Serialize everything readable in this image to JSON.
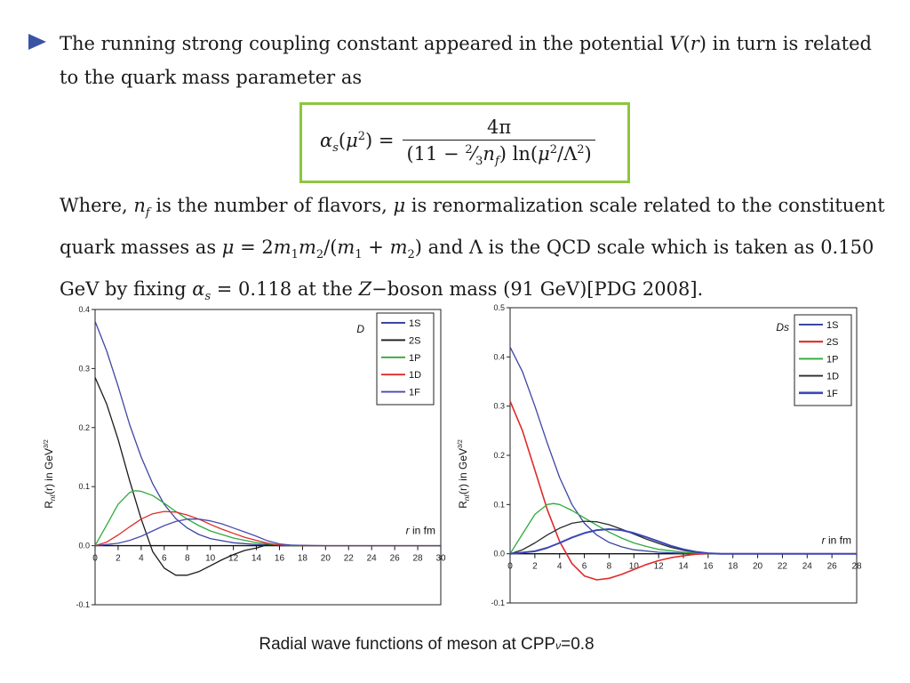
{
  "text": {
    "bullet_line1": "The running strong coupling constant appeared in the potential V(r) in turn is related",
    "bullet_line2": "to the quark mass parameter as",
    "formula_lhs": "α_s(μ²) =",
    "formula_num": "4π",
    "formula_den": "(11 − ⅔ n_f) ln(μ²/Λ²)",
    "where_line1": "Where, n_f is the number of flavors, μ is renormalization scale related to the constituent",
    "where_line2": "quark masses as μ = 2m₁m₂/(m₁ + m₂) and Λ is the QCD scale which is taken as 0.150",
    "where_line3": "GeV by fixing α_s = 0.118 at the Z−boson mass (91 GeV)[PDG 2008].",
    "caption_main": "Radial wave functions of meson at CPP",
    "caption_sub": "ν",
    "caption_value": "=0.8"
  },
  "colors": {
    "bullet": "#3a53a4",
    "formula_border": "#8dc63f"
  },
  "chart_data": [
    {
      "type": "line",
      "panel_label": "D",
      "xlabel": "r in fm",
      "ylabel": "R_nℓ(r) in GeV^3/2",
      "xlim": [
        0,
        30
      ],
      "ylim": [
        -0.1,
        0.4
      ],
      "xticks": [
        "0",
        "2",
        "4",
        "6",
        "8",
        "10",
        "12",
        "14",
        "16",
        "18",
        "20",
        "22",
        "24",
        "26",
        "28",
        "30"
      ],
      "yticks": [
        "-0.1",
        "0.0",
        "0.1",
        "0.2",
        "0.3",
        "0.4"
      ],
      "series": [
        {
          "name": "1S",
          "color": "#3b47a0",
          "width": 1.3,
          "points": [
            [
              0,
              0.38
            ],
            [
              1,
              0.33
            ],
            [
              2,
              0.27
            ],
            [
              3,
              0.205
            ],
            [
              4,
              0.15
            ],
            [
              5,
              0.105
            ],
            [
              6,
              0.07
            ],
            [
              7,
              0.046
            ],
            [
              8,
              0.03
            ],
            [
              9,
              0.019
            ],
            [
              10,
              0.012
            ],
            [
              12,
              0.005
            ],
            [
              14,
              0.002
            ],
            [
              16,
              0.001
            ],
            [
              20,
              0
            ],
            [
              30,
              0
            ]
          ]
        },
        {
          "name": "2S",
          "color": "#1a1a1a",
          "width": 1.3,
          "points": [
            [
              0,
              0.285
            ],
            [
              1,
              0.24
            ],
            [
              2,
              0.18
            ],
            [
              3,
              0.11
            ],
            [
              4,
              0.045
            ],
            [
              5,
              -0.01
            ],
            [
              6,
              -0.038
            ],
            [
              7,
              -0.05
            ],
            [
              8,
              -0.05
            ],
            [
              9,
              -0.044
            ],
            [
              10,
              -0.034
            ],
            [
              11,
              -0.024
            ],
            [
              12,
              -0.015
            ],
            [
              13,
              -0.008
            ],
            [
              14,
              -0.004
            ],
            [
              15,
              0.002
            ],
            [
              16,
              0
            ],
            [
              30,
              0
            ]
          ]
        },
        {
          "name": "1P",
          "color": "#2eaa3c",
          "width": 1.3,
          "points": [
            [
              0,
              0
            ],
            [
              1,
              0.035
            ],
            [
              2,
              0.07
            ],
            [
              3,
              0.09
            ],
            [
              3.5,
              0.093
            ],
            [
              4,
              0.092
            ],
            [
              5,
              0.085
            ],
            [
              6,
              0.072
            ],
            [
              7,
              0.058
            ],
            [
              8,
              0.045
            ],
            [
              9,
              0.034
            ],
            [
              10,
              0.025
            ],
            [
              12,
              0.013
            ],
            [
              14,
              0.005
            ],
            [
              15.5,
              0.002
            ],
            [
              17,
              0
            ],
            [
              30,
              0
            ]
          ]
        },
        {
          "name": "1D",
          "color": "#e02a2a",
          "width": 1.3,
          "points": [
            [
              0,
              0
            ],
            [
              1,
              0.006
            ],
            [
              2,
              0.018
            ],
            [
              3,
              0.032
            ],
            [
              4,
              0.045
            ],
            [
              5,
              0.054
            ],
            [
              6,
              0.058
            ],
            [
              7,
              0.057
            ],
            [
              8,
              0.052
            ],
            [
              9,
              0.045
            ],
            [
              10,
              0.036
            ],
            [
              11,
              0.028
            ],
            [
              12,
              0.021
            ],
            [
              13,
              0.014
            ],
            [
              14,
              0.009
            ],
            [
              15,
              0.004
            ],
            [
              16,
              0.001
            ],
            [
              18,
              0
            ],
            [
              30,
              0
            ]
          ]
        },
        {
          "name": "1F",
          "color": "#4a4ab0",
          "width": 1.3,
          "points": [
            [
              0,
              0
            ],
            [
              2,
              0.004
            ],
            [
              3,
              0.009
            ],
            [
              4,
              0.016
            ],
            [
              5,
              0.025
            ],
            [
              6,
              0.034
            ],
            [
              7,
              0.041
            ],
            [
              8,
              0.045
            ],
            [
              9,
              0.045
            ],
            [
              10,
              0.042
            ],
            [
              11,
              0.037
            ],
            [
              12,
              0.03
            ],
            [
              13,
              0.023
            ],
            [
              14,
              0.016
            ],
            [
              15,
              0.008
            ],
            [
              16,
              0.003
            ],
            [
              17,
              0.001
            ],
            [
              19,
              0
            ],
            [
              30,
              0
            ]
          ]
        }
      ]
    },
    {
      "type": "line",
      "panel_label": "Ds",
      "xlabel": "r in fm",
      "ylabel": "R_nℓ(r) in GeV^3/2",
      "xlim": [
        0,
        28
      ],
      "ylim": [
        -0.1,
        0.5
      ],
      "xticks": [
        "0",
        "2",
        "4",
        "6",
        "8",
        "10",
        "12",
        "14",
        "16",
        "18",
        "20",
        "22",
        "24",
        "26",
        "28"
      ],
      "yticks": [
        "-0.1",
        "0.0",
        "0.1",
        "0.2",
        "0.3",
        "0.4",
        "0.5"
      ],
      "series": [
        {
          "name": "1S",
          "color": "#3b47a0",
          "width": 1.3,
          "points": [
            [
              0,
              0.42
            ],
            [
              1,
              0.37
            ],
            [
              2,
              0.3
            ],
            [
              3,
              0.225
            ],
            [
              4,
              0.155
            ],
            [
              5,
              0.1
            ],
            [
              6,
              0.062
            ],
            [
              7,
              0.038
            ],
            [
              8,
              0.023
            ],
            [
              9,
              0.014
            ],
            [
              10,
              0.008
            ],
            [
              12,
              0.003
            ],
            [
              14,
              0.001
            ],
            [
              16,
              0
            ],
            [
              28,
              0
            ]
          ]
        },
        {
          "name": "2S",
          "color": "#e02a2a",
          "width": 1.6,
          "points": [
            [
              0,
              0.31
            ],
            [
              1,
              0.25
            ],
            [
              2,
              0.17
            ],
            [
              3,
              0.09
            ],
            [
              4,
              0.025
            ],
            [
              5,
              -0.02
            ],
            [
              6,
              -0.045
            ],
            [
              7,
              -0.053
            ],
            [
              8,
              -0.05
            ],
            [
              9,
              -0.042
            ],
            [
              10,
              -0.032
            ],
            [
              11,
              -0.022
            ],
            [
              12,
              -0.014
            ],
            [
              13,
              -0.008
            ],
            [
              14,
              -0.004
            ],
            [
              15,
              -0.001
            ],
            [
              16,
              0
            ],
            [
              28,
              0
            ]
          ]
        },
        {
          "name": "1P",
          "color": "#2eaa3c",
          "width": 1.3,
          "points": [
            [
              0,
              0
            ],
            [
              1,
              0.04
            ],
            [
              2,
              0.08
            ],
            [
              3,
              0.1
            ],
            [
              3.5,
              0.102
            ],
            [
              4,
              0.1
            ],
            [
              5,
              0.088
            ],
            [
              6,
              0.073
            ],
            [
              7,
              0.058
            ],
            [
              8,
              0.044
            ],
            [
              9,
              0.032
            ],
            [
              10,
              0.022
            ],
            [
              11,
              0.015
            ],
            [
              12,
              0.009
            ],
            [
              14,
              0.003
            ],
            [
              16,
              0
            ],
            [
              28,
              0
            ]
          ]
        },
        {
          "name": "1D",
          "color": "#2a2a2a",
          "width": 1.3,
          "points": [
            [
              0,
              0
            ],
            [
              1,
              0.008
            ],
            [
              2,
              0.022
            ],
            [
              3,
              0.038
            ],
            [
              4,
              0.052
            ],
            [
              5,
              0.062
            ],
            [
              6,
              0.066
            ],
            [
              7,
              0.065
            ],
            [
              8,
              0.059
            ],
            [
              9,
              0.05
            ],
            [
              10,
              0.04
            ],
            [
              11,
              0.03
            ],
            [
              12,
              0.021
            ],
            [
              13,
              0.013
            ],
            [
              14,
              0.007
            ],
            [
              15,
              0.003
            ],
            [
              16,
              0.001
            ],
            [
              17,
              0
            ],
            [
              28,
              0
            ]
          ]
        },
        {
          "name": "1F",
          "color": "#3a46b8",
          "width": 2.0,
          "points": [
            [
              0,
              0
            ],
            [
              2,
              0.005
            ],
            [
              3,
              0.012
            ],
            [
              4,
              0.022
            ],
            [
              5,
              0.033
            ],
            [
              6,
              0.042
            ],
            [
              7,
              0.048
            ],
            [
              8,
              0.05
            ],
            [
              9,
              0.048
            ],
            [
              10,
              0.042
            ],
            [
              11,
              0.034
            ],
            [
              12,
              0.025
            ],
            [
              13,
              0.016
            ],
            [
              14,
              0.009
            ],
            [
              15,
              0.004
            ],
            [
              16,
              0.001
            ],
            [
              17,
              0
            ],
            [
              28,
              0
            ]
          ]
        }
      ]
    }
  ]
}
